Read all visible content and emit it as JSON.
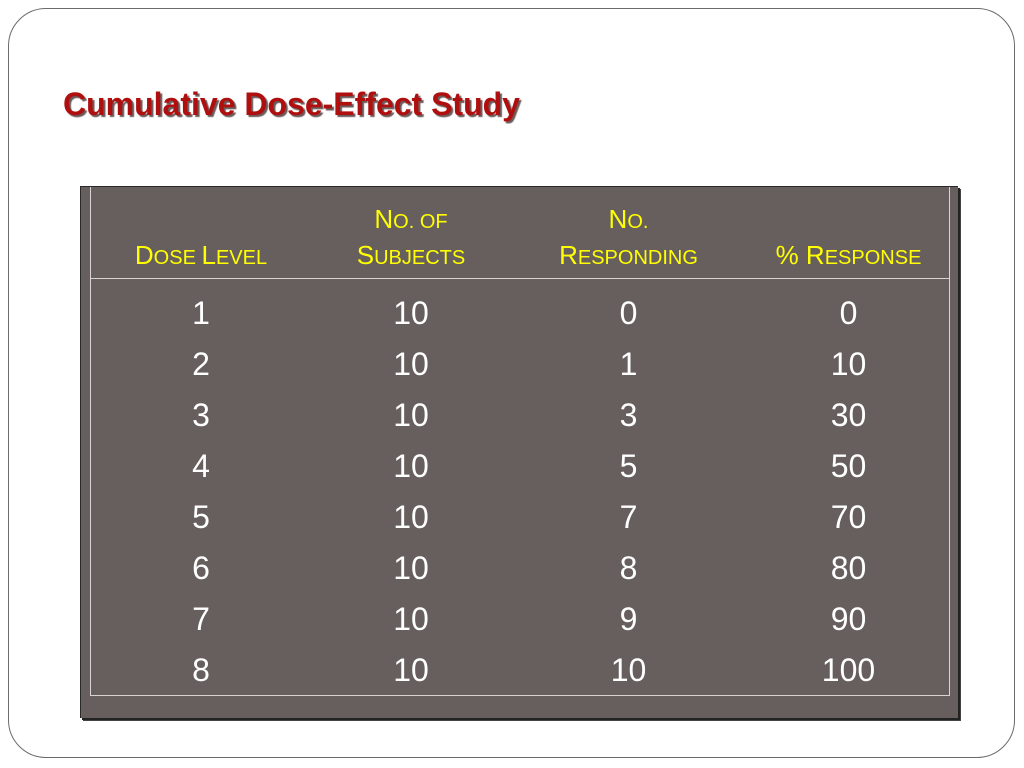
{
  "slide": {
    "title": "Cumulative Dose-Effect Study"
  },
  "table": {
    "headers": [
      {
        "lines": [
          [],
          [
            [
              "D",
              "big"
            ],
            [
              "OSE ",
              "small"
            ],
            [
              "L",
              "big"
            ],
            [
              "EVEL",
              "small"
            ]
          ]
        ]
      },
      {
        "lines": [
          [
            [
              "N",
              "big"
            ],
            [
              "O. OF",
              "small"
            ]
          ],
          [
            [
              "S",
              "big"
            ],
            [
              "UBJECTS",
              "small"
            ]
          ]
        ]
      },
      {
        "lines": [
          [
            [
              "N",
              "big"
            ],
            [
              "O.",
              "small"
            ]
          ],
          [
            [
              "R",
              "big"
            ],
            [
              "ESPONDING",
              "small"
            ]
          ]
        ]
      },
      {
        "lines": [
          [],
          [
            [
              "% R",
              "big"
            ],
            [
              "ESPONSE",
              "small"
            ]
          ]
        ]
      }
    ],
    "rows": [
      [
        "1",
        "10",
        "0",
        "0"
      ],
      [
        "2",
        "10",
        "1",
        "10"
      ],
      [
        "3",
        "10",
        "3",
        "30"
      ],
      [
        "4",
        "10",
        "5",
        "50"
      ],
      [
        "5",
        "10",
        "7",
        "70"
      ],
      [
        "6",
        "10",
        "8",
        "80"
      ],
      [
        "7",
        "10",
        "9",
        "90"
      ],
      [
        "8",
        "10",
        "10",
        "100"
      ]
    ],
    "colors": {
      "background": "#665f5e",
      "header_text": "#ffff00",
      "body_text": "#ffffff",
      "title_text": "#b00f0f"
    }
  }
}
